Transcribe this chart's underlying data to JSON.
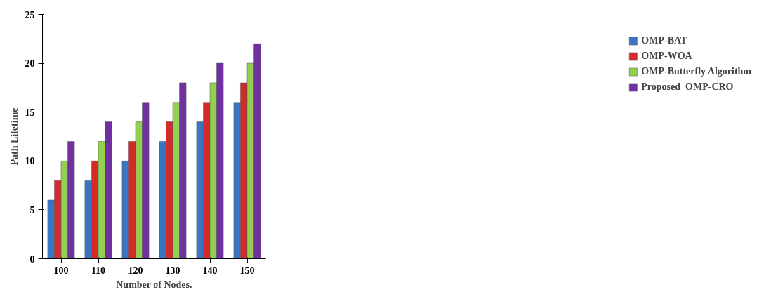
{
  "chart_data": {
    "type": "bar",
    "xlabel": "Number of Nodes.",
    "ylabel": "Path Lifetime",
    "categories": [
      "100",
      "110",
      "120",
      "130",
      "140",
      "150"
    ],
    "series": [
      {
        "name": "OMP-BAT",
        "color": "#3a75c4",
        "values": [
          6,
          8,
          10,
          12,
          14,
          16
        ]
      },
      {
        "name": "OMP-WOA",
        "color": "#d42a2a",
        "values": [
          8,
          10,
          12,
          14,
          16,
          18
        ]
      },
      {
        "name": "OMP-Butterfly Algorithm",
        "color": "#92d050",
        "values": [
          10,
          12,
          14,
          16,
          18,
          20
        ]
      },
      {
        "name": "Proposed  OMP-CRO",
        "color": "#7030a0",
        "values": [
          12,
          14,
          16,
          18,
          20,
          22
        ]
      }
    ],
    "ylim": [
      0,
      25
    ],
    "yticks": [
      0,
      5,
      10,
      15,
      20,
      25
    ],
    "grid": false,
    "legend": "right"
  }
}
